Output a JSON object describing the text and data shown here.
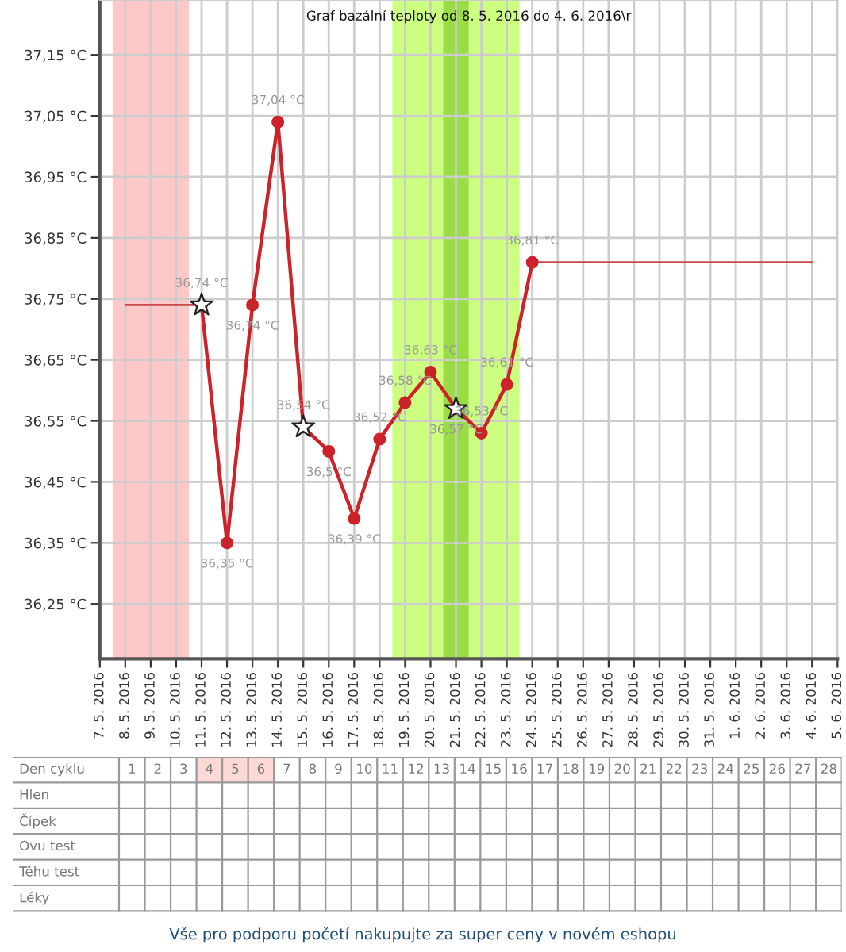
{
  "chart_data": [
    {
      "type": "line",
      "title": "Graf bazální teploty od 8. 5. 2016 do 4. 6. 2016\\r",
      "xlim": [
        "2016-05-07",
        "2016-06-05"
      ],
      "xticks": [
        {
          "value": "2016-05-07",
          "label": "7. 5. 2016"
        },
        {
          "value": "2016-05-08",
          "label": "8. 5. 2016"
        },
        {
          "value": "2016-05-09",
          "label": "9. 5. 2016"
        },
        {
          "value": "2016-05-10",
          "label": "10. 5. 2016"
        },
        {
          "value": "2016-05-11",
          "label": "11. 5. 2016"
        },
        {
          "value": "2016-05-12",
          "label": "12. 5. 2016"
        },
        {
          "value": "2016-05-13",
          "label": "13. 5. 2016"
        },
        {
          "value": "2016-05-14",
          "label": "14. 5. 2016"
        },
        {
          "value": "2016-05-15",
          "label": "15. 5. 2016"
        },
        {
          "value": "2016-05-16",
          "label": "16. 5. 2016"
        },
        {
          "value": "2016-05-17",
          "label": "17. 5. 2016"
        },
        {
          "value": "2016-05-18",
          "label": "18. 5. 2016"
        },
        {
          "value": "2016-05-19",
          "label": "19. 5. 2016"
        },
        {
          "value": "2016-05-20",
          "label": "20. 5. 2016"
        },
        {
          "value": "2016-05-21",
          "label": "21. 5. 2016"
        },
        {
          "value": "2016-05-22",
          "label": "22. 5. 2016"
        },
        {
          "value": "2016-05-23",
          "label": "23. 5. 2016"
        },
        {
          "value": "2016-05-24",
          "label": "24. 5. 2016"
        },
        {
          "value": "2016-05-25",
          "label": "25. 5. 2016"
        },
        {
          "value": "2016-05-26",
          "label": "26. 5. 2016"
        },
        {
          "value": "2016-05-27",
          "label": "27. 5. 2016"
        },
        {
          "value": "2016-05-28",
          "label": "28. 5. 2016"
        },
        {
          "value": "2016-05-29",
          "label": "29. 5. 2016"
        },
        {
          "value": "2016-05-30",
          "label": "30. 5. 2016"
        },
        {
          "value": "2016-05-31",
          "label": "31. 5. 2016"
        },
        {
          "value": "2016-06-01",
          "label": "1. 6. 2016"
        },
        {
          "value": "2016-06-02",
          "label": "2. 6. 2016"
        },
        {
          "value": "2016-06-03",
          "label": "3. 6. 2016"
        },
        {
          "value": "2016-06-04",
          "label": "4. 6. 2016"
        },
        {
          "value": "2016-06-05",
          "label": "5. 6. 2016"
        }
      ],
      "ylim": [
        36.16,
        37.24
      ],
      "yticks": [
        {
          "value": 36.25,
          "label": "36,25 °C"
        },
        {
          "value": 36.35,
          "label": "36,35 °C"
        },
        {
          "value": 36.45,
          "label": "36,45 °C"
        },
        {
          "value": 36.55,
          "label": "36,55 °C"
        },
        {
          "value": 36.65,
          "label": "36,65 °C"
        },
        {
          "value": 36.75,
          "label": "36,75 °C"
        },
        {
          "value": 36.85,
          "label": "36,85 °C"
        },
        {
          "value": 36.95,
          "label": "36,95 °C"
        },
        {
          "value": 37.05,
          "label": "37,05 °C"
        },
        {
          "value": 37.15,
          "label": "37,15 °C"
        }
      ],
      "grid": true,
      "bands": [
        {
          "axis": "x",
          "from": "2016-05-07T12:00",
          "to": "2016-05-10T12:00",
          "color": "#ffc8c8"
        },
        {
          "axis": "x",
          "from": "2016-05-18T12:00",
          "to": "2016-05-23T12:00",
          "color": "#ccff80"
        },
        {
          "axis": "x",
          "from": "2016-05-20T12:00",
          "to": "2016-05-21T12:00",
          "color": "#99dd44"
        }
      ],
      "series": [
        {
          "type": "line",
          "color": "#c84848",
          "marker": "none",
          "x": [
            "2016-05-08",
            "2016-05-11"
          ],
          "values": [
            36.74,
            36.74
          ]
        },
        {
          "type": "line",
          "color": "#c84848",
          "marker": "none",
          "x": [
            "2016-05-24",
            "2016-06-04"
          ],
          "values": [
            36.81,
            36.81
          ]
        },
        {
          "type": "line",
          "color": "#cc2229",
          "marker": "circle",
          "x": [
            "2016-05-11",
            "2016-05-12",
            "2016-05-13",
            "2016-05-14",
            "2016-05-15",
            "2016-05-16",
            "2016-05-17",
            "2016-05-18",
            "2016-05-19",
            "2016-05-20",
            "2016-05-21",
            "2016-05-22",
            "2016-05-23",
            "2016-05-24"
          ],
          "values": [
            36.74,
            36.35,
            36.74,
            37.04,
            36.54,
            36.5,
            36.39,
            36.52,
            36.58,
            36.63,
            36.57,
            36.53,
            36.61,
            36.81
          ],
          "value_labels": [
            "36,74 °C",
            "36,35 °C",
            "36,74 °C",
            "37,04 °C",
            "36,54 °C",
            "36,5 °C",
            "36,39 °C",
            "36,52 °C",
            "36,58 °C",
            "36,63 °C",
            "36,57 °C",
            "36,53 °C",
            "36,61 °C",
            "36,81 °C"
          ]
        },
        {
          "type": "scatter",
          "color": "#ffffff",
          "marker": "star",
          "x": [
            "2016-05-11",
            "2016-05-15",
            "2016-05-21"
          ],
          "values": [
            36.74,
            36.54,
            36.57
          ]
        }
      ]
    },
    {
      "type": "heatmap",
      "xlabel": "Den cyklu",
      "categories": [
        "1",
        "2",
        "3",
        "4",
        "5",
        "6",
        "7",
        "8",
        "9",
        "10",
        "11",
        "12",
        "13",
        "14",
        "15",
        "16",
        "17",
        "18",
        "19",
        "20",
        "21",
        "22",
        "23",
        "24",
        "25",
        "26",
        "27",
        "28"
      ],
      "y_categories": [
        "Hlen",
        "Čípek",
        "Ovu test",
        "Těhu test",
        "Léky"
      ],
      "cells": [
        [
          null,
          null,
          null,
          null,
          null,
          null,
          null,
          null,
          null,
          null,
          null,
          null,
          null,
          null,
          null,
          null,
          null,
          null,
          null,
          null,
          null,
          null,
          null,
          null,
          null,
          null,
          null,
          null
        ],
        [
          null,
          null,
          null,
          null,
          null,
          null,
          null,
          null,
          null,
          null,
          null,
          null,
          null,
          null,
          null,
          null,
          null,
          null,
          null,
          null,
          null,
          null,
          null,
          null,
          null,
          null,
          null,
          null
        ],
        [
          null,
          null,
          null,
          null,
          null,
          null,
          null,
          null,
          null,
          null,
          null,
          null,
          null,
          null,
          null,
          null,
          null,
          null,
          null,
          null,
          null,
          null,
          null,
          null,
          null,
          null,
          null,
          null
        ],
        [
          null,
          null,
          null,
          null,
          null,
          null,
          null,
          null,
          null,
          null,
          null,
          null,
          null,
          null,
          null,
          null,
          null,
          null,
          null,
          null,
          null,
          null,
          null,
          null,
          null,
          null,
          null,
          null
        ],
        [
          null,
          null,
          null,
          null,
          null,
          null,
          null,
          null,
          null,
          null,
          null,
          null,
          null,
          null,
          null,
          null,
          null,
          null,
          null,
          null,
          null,
          null,
          null,
          null,
          null,
          null,
          null,
          null
        ]
      ],
      "bands": [
        {
          "axis": "x",
          "from": "4",
          "to": "6",
          "color": "#fcd9d4"
        }
      ],
      "annotations": [
        "Vše pro podporu početí nakupujte za super ceny v novém eshopu"
      ]
    }
  ]
}
